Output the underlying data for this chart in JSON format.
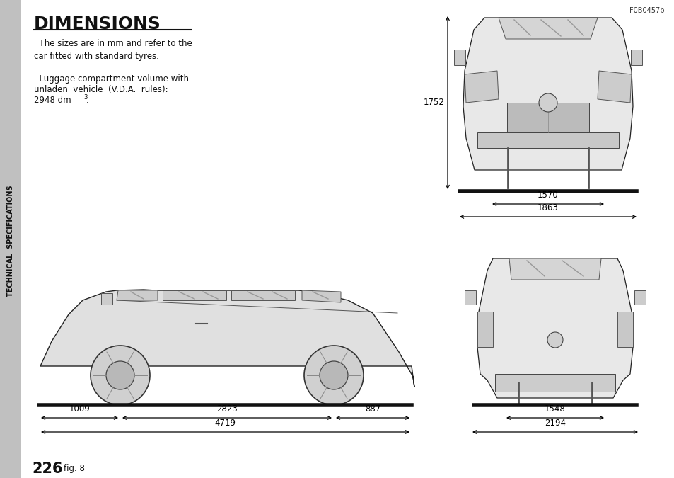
{
  "bg_color": "#ffffff",
  "sidebar_color": "#c0c0c0",
  "title": "DIMENSIONS",
  "para1": "  The sizes are in mm and refer to the\ncar fitted with standard tyres.",
  "para2_line1": "  Luggage compartment volume with",
  "para2_line2": "unladen  vehicle  (V.D.A.  rules):",
  "para2_line3": "2948 dm",
  "para2_super": "3",
  "sidebar_text": "TECHNICAL  SPECIFICATIONS",
  "page_num": "226",
  "fig_label": "fig. 8",
  "ref_code": "F0B0457b",
  "front_dims": {
    "height": "1752",
    "width1": "1570",
    "width2": "1863"
  },
  "rear_dims": {
    "width1": "1548",
    "width2": "2194"
  },
  "side_dims": {
    "d1": "1009",
    "d2": "2823",
    "d3": "887",
    "total": "4719"
  }
}
